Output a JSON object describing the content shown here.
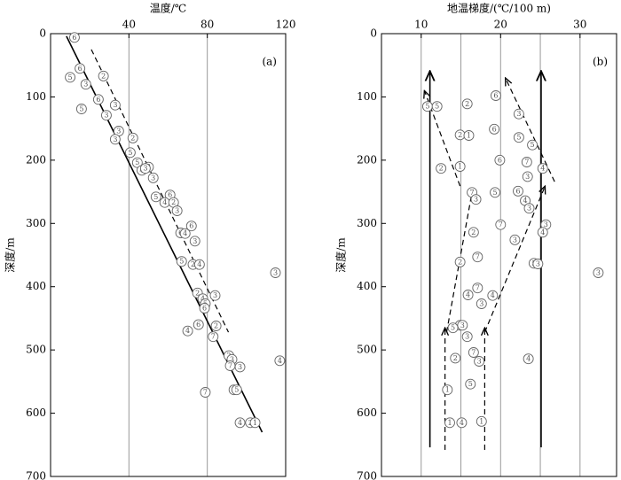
{
  "chart_data": [
    {
      "type": "scatter",
      "title": "温度/℃",
      "ylabel": "深度/m",
      "panel_label": "(a)",
      "xlim": [
        0,
        120
      ],
      "xticks": [
        40,
        80,
        120
      ],
      "xgrid": [
        40,
        80
      ],
      "ylim": [
        0,
        700
      ],
      "yticks": [
        0,
        100,
        200,
        300,
        400,
        500,
        600,
        700
      ],
      "y_inverted": true,
      "x": [
        12.2,
        15,
        10,
        18,
        27,
        24.4,
        15.8,
        33,
        28.5,
        34.8,
        33,
        42,
        40.7,
        44.3,
        50,
        46.6,
        48.4,
        52.4,
        53.8,
        61,
        58.3,
        62.8,
        64.6,
        71.9,
        66.4,
        68.7,
        73.7,
        66.9,
        72.7,
        76,
        75,
        77.7,
        79,
        84,
        78.6,
        84.5,
        75.5,
        70,
        83,
        91,
        92.6,
        91.7,
        96.7,
        93.6,
        95,
        79,
        96.7,
        102,
        104.4,
        114.8,
        117
      ],
      "y": [
        6,
        55,
        69,
        80,
        67,
        104,
        119,
        113,
        129,
        154,
        167,
        165,
        188,
        204,
        211,
        216,
        213,
        228,
        258,
        255,
        267,
        267,
        280,
        304,
        315,
        316,
        328,
        360,
        365,
        365,
        410,
        419,
        427,
        414,
        434,
        462,
        460,
        470,
        479,
        509,
        515,
        525,
        527,
        563,
        563,
        567,
        615,
        615,
        615,
        378,
        517
      ],
      "labels": [
        "6",
        "6",
        "5",
        "3",
        "2",
        "6",
        "5",
        "3",
        "3",
        "3",
        "3",
        "2",
        "5",
        "5",
        "3",
        "4",
        "3",
        "3",
        "5",
        "6",
        "4",
        "2",
        "3",
        "6",
        "6",
        "4",
        "3",
        "5",
        "2",
        "4",
        "2",
        "4",
        "5",
        "3",
        "6",
        "2",
        "6",
        "4",
        "7",
        "2",
        "3",
        "7",
        "3",
        "2",
        "5",
        "7",
        "4",
        "2",
        "1",
        "3",
        "4"
      ],
      "lines": [
        {
          "x": [
            8.1,
            108
          ],
          "y": [
            4,
            630
          ],
          "style": "solid",
          "arrow": false
        },
        {
          "x": [
            20.8,
            90.8
          ],
          "y": [
            25,
            472
          ],
          "style": "dashed",
          "arrow": false
        }
      ]
    },
    {
      "type": "scatter",
      "title": "地温梯度/(℃/100 m)",
      "ylabel": "深度/m",
      "panel_label": "(b)",
      "xlim": [
        5,
        34.6
      ],
      "xticks": [
        10,
        20,
        30
      ],
      "xgrid": [
        10,
        15,
        20,
        25,
        30
      ],
      "ylim": [
        0,
        700
      ],
      "yticks": [
        0,
        100,
        200,
        300,
        400,
        500,
        600,
        700
      ],
      "y_inverted": true,
      "x": [
        10.8,
        12,
        15.8,
        19.4,
        22.3,
        14.9,
        16,
        19.2,
        22.3,
        24,
        12.5,
        14.9,
        19.9,
        23.3,
        25.3,
        23.4,
        16.4,
        19.3,
        22.2,
        23.1,
        23.6,
        16.9,
        16.6,
        20,
        25.7,
        25.3,
        21.8,
        14.9,
        17.1,
        24.2,
        24.7,
        15.9,
        17.1,
        19,
        17.6,
        14.9,
        15.2,
        14,
        15.8,
        16.6,
        17.3,
        14.3,
        23.5,
        16.2,
        13.3,
        15.1,
        13.6,
        17.6,
        32.3
      ],
      "y": [
        115,
        115,
        111,
        98,
        127,
        160,
        161,
        151,
        164,
        176,
        213,
        210,
        200,
        203,
        213,
        226,
        251,
        251,
        249,
        264,
        276,
        262,
        314,
        302,
        302,
        314,
        326,
        361,
        353,
        363,
        364,
        413,
        402,
        414,
        427,
        461,
        461,
        465,
        479,
        504,
        518,
        513,
        514,
        554,
        563,
        615,
        615,
        613,
        378
      ],
      "labels": [
        "5",
        "5",
        "2",
        "6",
        "3",
        "2",
        "1",
        "6",
        "5",
        "5",
        "2",
        "1",
        "6",
        "7",
        "4",
        "3",
        "7",
        "5",
        "6",
        "4",
        "3",
        "3",
        "2",
        "7",
        "3",
        "4",
        "3",
        "2",
        "7",
        "5",
        "3",
        "4",
        "7",
        "4",
        "3",
        "7",
        "3",
        "5",
        "3",
        "7",
        "3",
        "2",
        "4",
        "5",
        "1",
        "4",
        "1",
        "1",
        "3"
      ],
      "lines": [
        {
          "x": [
            11.1,
            11.1
          ],
          "y": [
            654,
            59
          ],
          "style": "solid",
          "arrow": true
        },
        {
          "x": [
            25.1,
            25.1
          ],
          "y": [
            654,
            59
          ],
          "style": "solid",
          "arrow": true
        },
        {
          "x": [
            14.9,
            10.4
          ],
          "y": [
            241,
            90
          ],
          "style": "dashed",
          "arrow": true
        },
        {
          "x": [
            26.8,
            20.6
          ],
          "y": [
            234,
            70
          ],
          "style": "dashed",
          "arrow": true
        },
        {
          "x": [
            13.2,
            16.5
          ],
          "y": [
            472,
            244
          ],
          "style": "dashed",
          "arrow": true
        },
        {
          "x": [
            18,
            25.6
          ],
          "y": [
            472,
            241
          ],
          "style": "dashed",
          "arrow": true
        },
        {
          "x": [
            13,
            13
          ],
          "y": [
            658,
            465
          ],
          "style": "dashed",
          "arrow": true
        },
        {
          "x": [
            18,
            18
          ],
          "y": [
            658,
            465
          ],
          "style": "dashed",
          "arrow": true
        }
      ]
    }
  ]
}
